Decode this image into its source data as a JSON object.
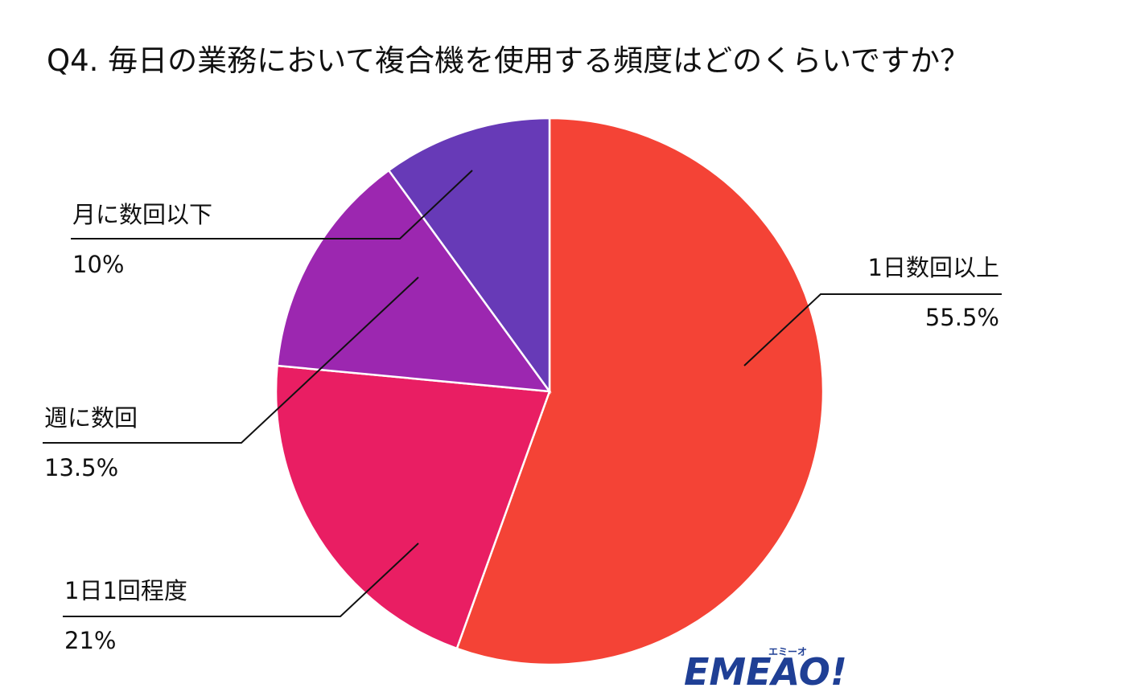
{
  "chart_data": {
    "type": "pie",
    "title": "Q4. 毎日の業務において複合機を使用する頻度はどのくらいですか？",
    "categories": [
      "1日数回以上",
      "1日1回程度",
      "週に数回",
      "月に数回以下"
    ],
    "values": [
      55.5,
      21,
      13.5,
      10
    ],
    "value_labels": [
      "55.5%",
      "21%",
      "13.5%",
      "10%"
    ],
    "colors": [
      "#f44336",
      "#e91e63",
      "#9c27b0",
      "#673ab7"
    ]
  },
  "logo": {
    "text": "EMEAO!",
    "ruby": "エミーオ"
  }
}
